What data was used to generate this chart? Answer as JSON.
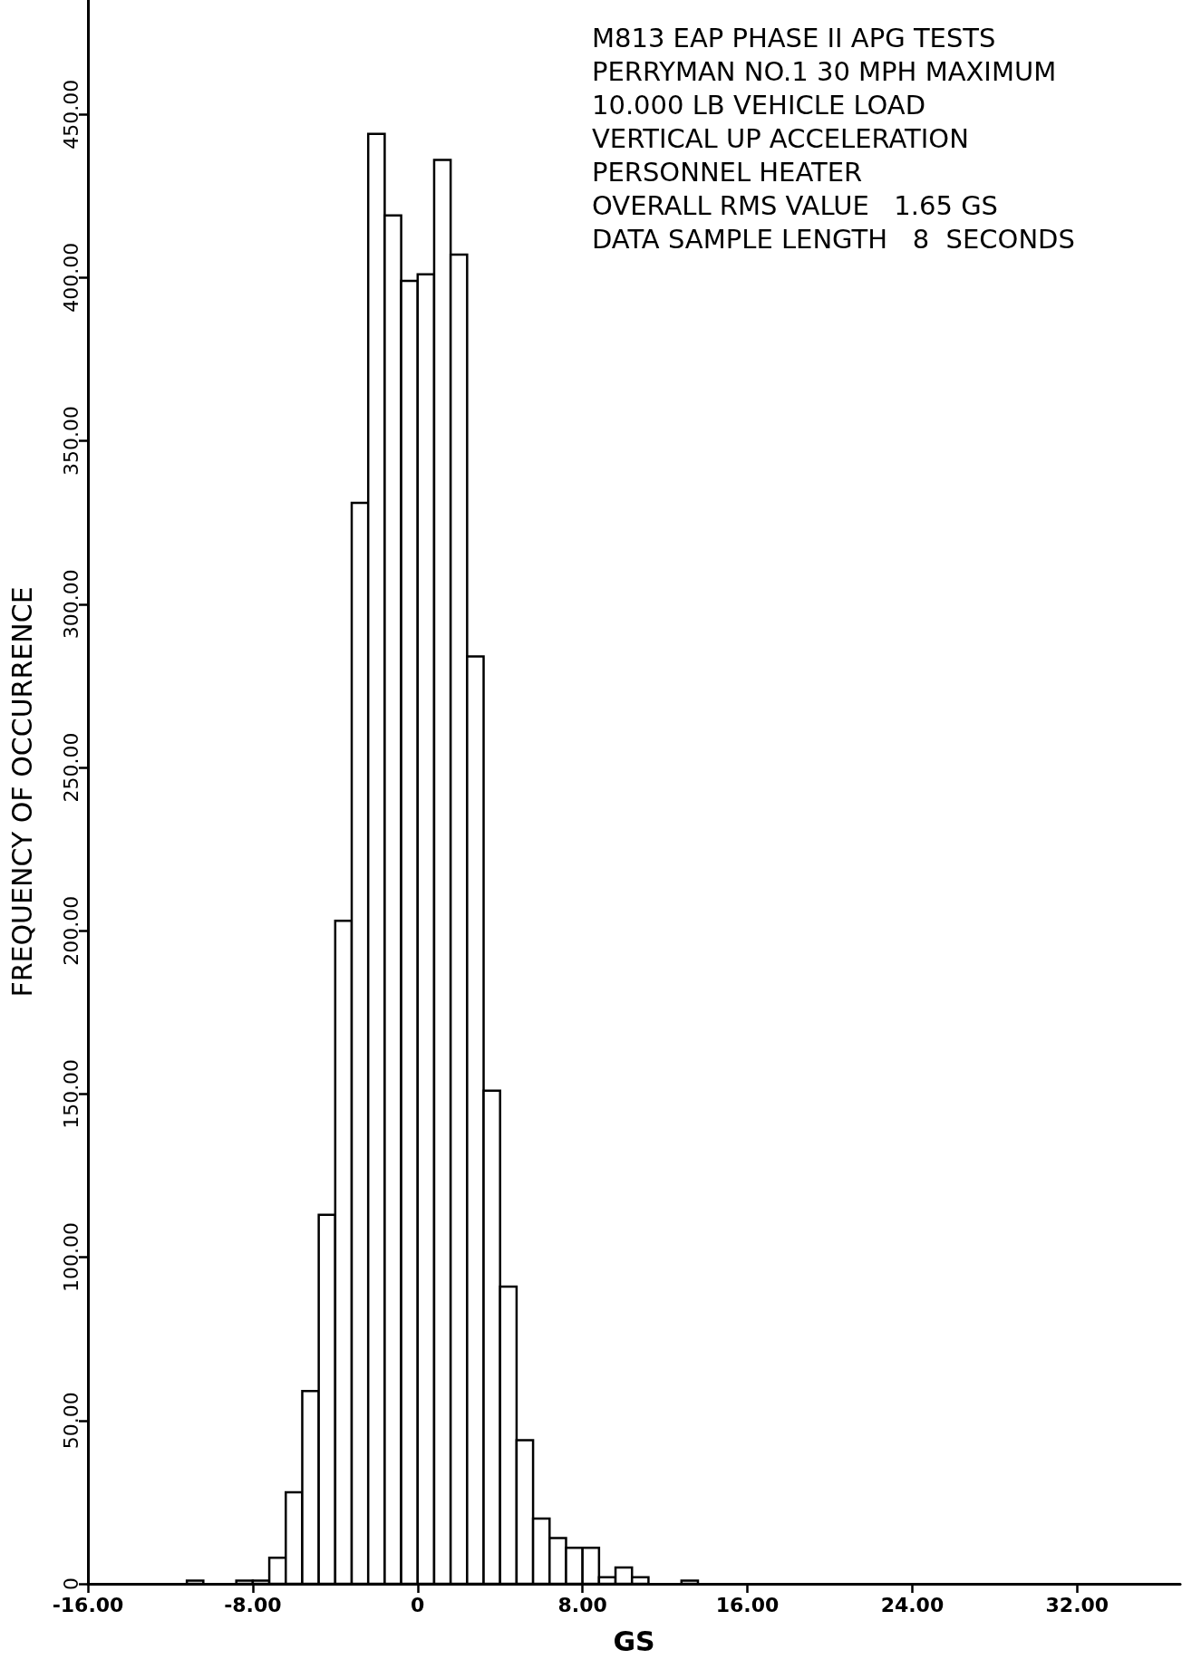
{
  "chart_data": {
    "type": "histogram",
    "title": "M813 EAP PHASE II APG TESTS",
    "annotations": [
      "PERRYMAN NO.1 30 MPH MAXIMUM",
      "10.000 LB VEHICLE LOAD",
      "VERTICAL UP ACCELERATION",
      "PERSONNEL HEATER",
      "OVERALL RMS VALUE   1.65 GS",
      "DATA SAMPLE LENGTH   8  SECONDS"
    ],
    "xlabel": "GS",
    "ylabel": "FREQUENCY OF OCCURRENCE",
    "bins": [
      -11.2,
      -10.4,
      -9.6,
      -8.8,
      -8.0,
      -7.2,
      -6.4,
      -5.6,
      -4.8,
      -4.0,
      -3.2,
      -2.4,
      -1.6,
      -0.8,
      0,
      0.8,
      1.6,
      2.4,
      3.2,
      4.0,
      4.8,
      5.6,
      6.4,
      7.2,
      8.0,
      8.8,
      9.6,
      10.4,
      11.2,
      12.0,
      12.8,
      13.6
    ],
    "values": [
      1,
      0,
      0,
      1,
      1,
      8,
      28,
      59,
      113,
      203,
      331,
      444,
      419,
      399,
      401,
      436,
      407,
      284,
      151,
      91,
      44,
      20,
      14,
      11,
      11,
      2,
      5,
      2,
      0,
      0,
      1
    ],
    "color": "#ffffff",
    "xlim": [
      -16,
      37
    ],
    "xticks": [
      {
        "value": -16,
        "label": "-16.00"
      },
      {
        "value": -8,
        "label": "-8.00"
      },
      0,
      {
        "value": 8,
        "label": "8.00"
      },
      {
        "value": 16,
        "label": "16.00"
      },
      {
        "value": 24,
        "label": "24.00"
      },
      {
        "value": 32,
        "label": "32.00"
      }
    ],
    "ylim": [
      0,
      485
    ],
    "yticks": [
      0,
      {
        "value": 50,
        "label": "50.00"
      },
      {
        "value": 100,
        "label": "100.00"
      },
      {
        "value": 150,
        "label": "150.00"
      },
      {
        "value": 200,
        "label": "200.00"
      },
      {
        "value": 250,
        "label": "250.00"
      },
      {
        "value": 300,
        "label": "300.00"
      },
      {
        "value": 350,
        "label": "350.00"
      },
      {
        "value": 400,
        "label": "400.00"
      },
      {
        "value": 450,
        "label": "450.00"
      }
    ],
    "grid": false
  }
}
